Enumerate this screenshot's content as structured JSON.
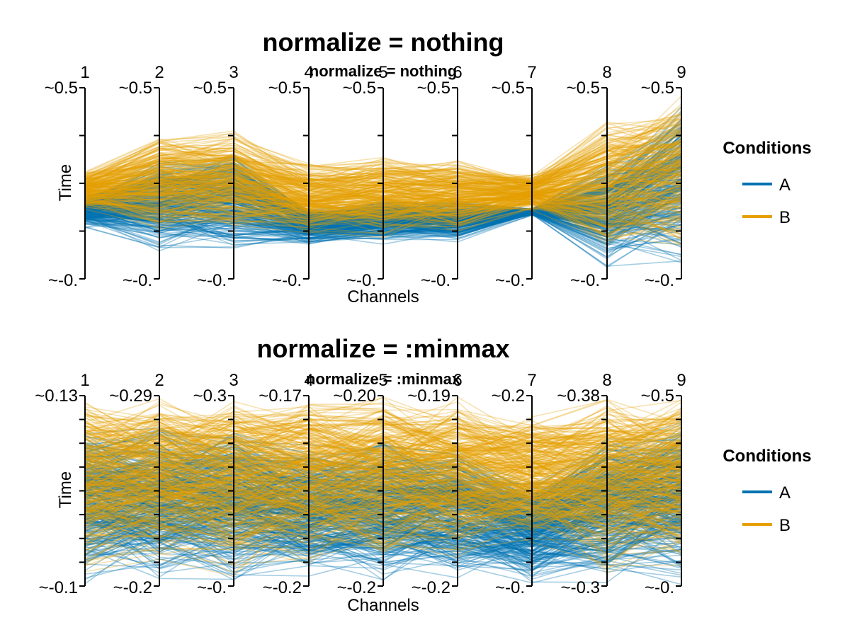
{
  "colors": {
    "A": "#0072b2",
    "B": "#e69f00"
  },
  "chart_data": [
    {
      "type": "parallel-coordinates",
      "title": "normalize = nothing",
      "subtitle": "normalize = nothing",
      "xlabel": "Channels",
      "ylabel": "Time",
      "channels": [
        "1",
        "2",
        "3",
        "4",
        "5",
        "6",
        "7",
        "8",
        "9"
      ],
      "axis_top_labels": [
        "~0.5",
        "~0.5",
        "~0.5",
        "~0.5",
        "~0.5",
        "~0.5",
        "~0.5",
        "~0.5",
        "~0.5"
      ],
      "axis_bottom_labels": [
        "~-0.",
        "~-0.",
        "~-0.",
        "~-0.",
        "~-0.",
        "~-0.",
        "~-0.",
        "~-0.",
        "~-0."
      ],
      "legend": {
        "title": "Conditions",
        "entries": [
          "A",
          "B"
        ]
      },
      "series": [
        {
          "name": "A",
          "envelope_upper": [
            0.44,
            0.63,
            0.68,
            0.37,
            0.42,
            0.41,
            0.37,
            0.61,
            0.91
          ],
          "envelope_lower": [
            0.26,
            0.12,
            0.11,
            0.17,
            0.17,
            0.18,
            0.33,
            0.03,
            0.02
          ]
        },
        {
          "name": "B",
          "envelope_upper": [
            0.57,
            0.76,
            0.79,
            0.62,
            0.66,
            0.63,
            0.55,
            0.85,
            1.0
          ],
          "envelope_lower": [
            0.36,
            0.24,
            0.22,
            0.23,
            0.21,
            0.23,
            0.35,
            0.13,
            0.1
          ]
        }
      ]
    },
    {
      "type": "parallel-coordinates",
      "title": "normalize = :minmax",
      "subtitle": "normalize = :minmax",
      "xlabel": "Channels",
      "ylabel": "Time",
      "channels": [
        "1",
        "2",
        "3",
        "4",
        "5",
        "6",
        "7",
        "8",
        "9"
      ],
      "axis_top_labels": [
        "~0.13",
        "~0.29",
        "~0.3",
        "~0.17",
        "~0.20",
        "~0.19",
        "~0.2",
        "~0.38",
        "~0.5"
      ],
      "axis_bottom_labels": [
        "~-0.1",
        "~-0.2",
        "~-0.",
        "~-0.2",
        "~-0.2",
        "~-0.2",
        "~-0.",
        "~-0.3",
        "~-0."
      ],
      "legend": {
        "title": "Conditions",
        "entries": [
          "A",
          "B"
        ]
      },
      "series": [
        {
          "name": "A",
          "envelope_upper": [
            0.85,
            0.85,
            0.85,
            0.75,
            0.78,
            0.75,
            0.55,
            0.8,
            0.9
          ],
          "envelope_lower": [
            0.0,
            0.0,
            0.0,
            0.02,
            0.0,
            0.02,
            0.0,
            0.0,
            0.0
          ]
        },
        {
          "name": "B",
          "envelope_upper": [
            1.0,
            1.0,
            1.0,
            1.0,
            1.0,
            1.0,
            0.9,
            1.0,
            1.0
          ],
          "envelope_lower": [
            0.05,
            0.1,
            0.05,
            0.1,
            0.1,
            0.1,
            0.2,
            0.05,
            0.1
          ]
        }
      ]
    }
  ]
}
